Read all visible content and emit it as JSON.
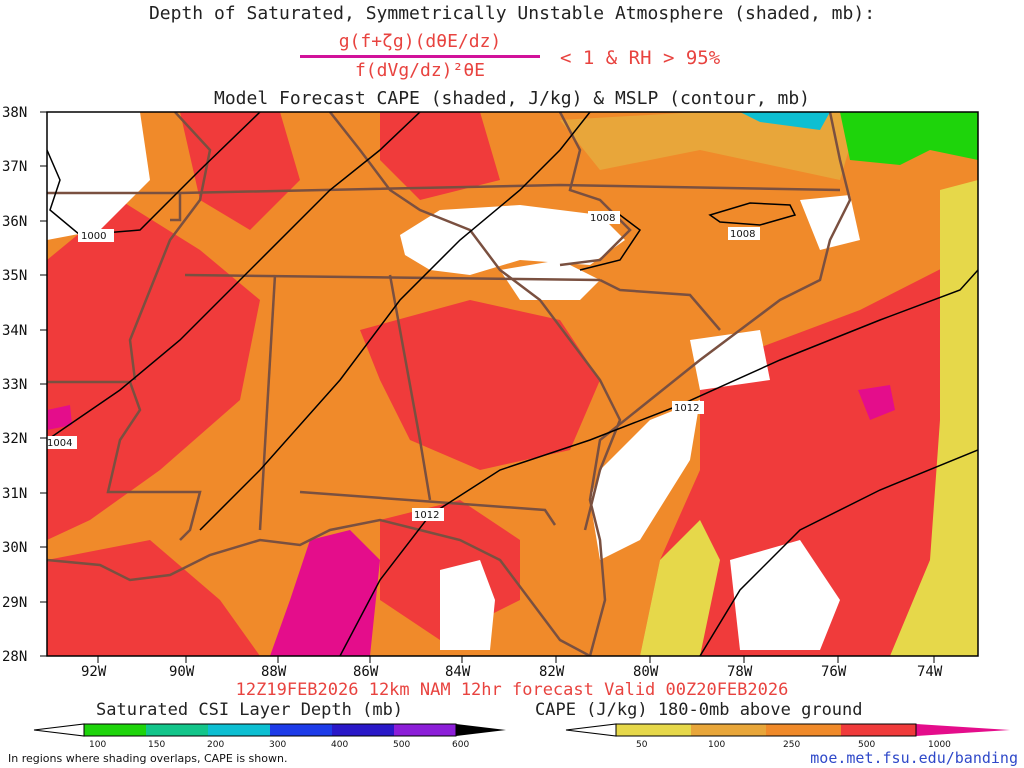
{
  "titles": {
    "line1": "Depth of Saturated, Symmetrically Unstable Atmosphere (shaded, mb):",
    "formula_numerator": "g(f+ζg)(dθE/dz)",
    "formula_denominator": "f(dVg/dz)²θE",
    "condition": "< 1 & RH > 95%",
    "line3": "Model Forecast CAPE (shaded, J/kg) & MSLP (contour, mb)"
  },
  "map": {
    "latitude_labels": [
      "38N",
      "37N",
      "36N",
      "35N",
      "34N",
      "33N",
      "32N",
      "31N",
      "30N",
      "29N",
      "28N"
    ],
    "longitude_labels": [
      "92W",
      "90W",
      "88W",
      "86W",
      "84W",
      "82W",
      "80W",
      "78W",
      "76W",
      "74W"
    ],
    "isobars": [
      {
        "value": 1000,
        "label": "1000"
      },
      {
        "value": 1004,
        "label": "1004"
      },
      {
        "value": 1008,
        "label": "1008"
      },
      {
        "value": 1008,
        "label": "1008"
      },
      {
        "value": 1012,
        "label": "1012"
      },
      {
        "value": 1012,
        "label": "1012"
      }
    ],
    "colors": {
      "ocean_high_cape": "#f03b3b",
      "land_mid_cape": "#f08a2a",
      "low_cape": "#e8a63a",
      "very_low_cape": "#e6d84a",
      "extreme_cape": "#e40d8b",
      "borders": "#7a5040",
      "isobars": "#000000",
      "no_data": "#ffffff"
    }
  },
  "run_info": "12Z19FEB2026 12km NAM 12hr forecast Valid 00Z20FEB2026",
  "colorbars": {
    "csi": {
      "title": "Saturated CSI Layer Depth (mb)",
      "ticks": [
        "100",
        "150",
        "200",
        "300",
        "400",
        "500",
        "600"
      ],
      "colors": [
        "#ffffff",
        "#1ed40b",
        "#13c58a",
        "#0dbfd2",
        "#1d3be8",
        "#2a18c8",
        "#8c1ed8",
        "#000000"
      ]
    },
    "cape": {
      "title": "CAPE (J/kg) 180-0mb above ground",
      "ticks": [
        "50",
        "100",
        "250",
        "500",
        "1000"
      ],
      "colors": [
        "#ffffff",
        "#e6d84a",
        "#e8a63a",
        "#f08a2a",
        "#f03b3b",
        "#e40d8b"
      ]
    }
  },
  "footnote": "In regions where shading overlaps, CAPE is shown.",
  "site_url": "moe.met.fsu.edu/banding"
}
